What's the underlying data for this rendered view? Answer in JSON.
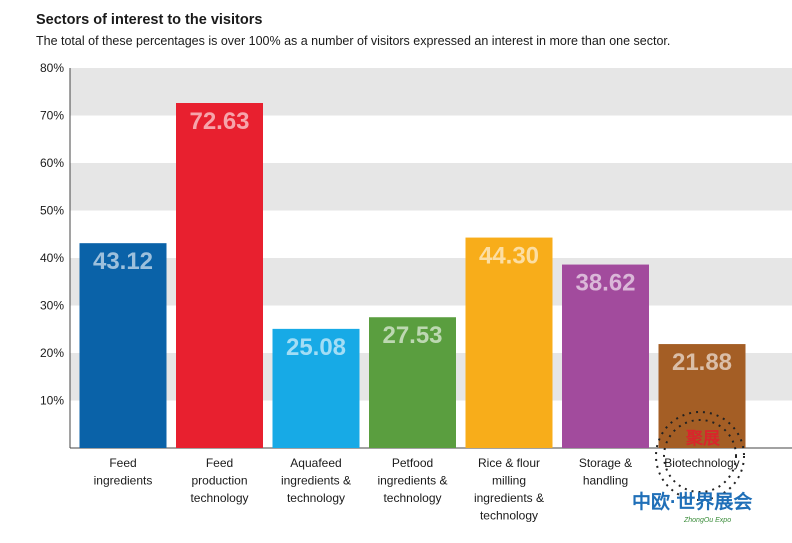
{
  "header": {
    "title": "Sectors of interest to the visitors",
    "subtitle": "The total of these percentages is over 100% as a number of visitors expressed an interest in more than one sector."
  },
  "watermark": {
    "text_top": "聚展",
    "text_main": "中欧·世界展会",
    "text_sub": "ZhongOu Expo"
  },
  "chart_data": {
    "type": "bar",
    "title": "Sectors of interest to the visitors",
    "subtitle": "The total of these percentages is over 100% as a number of visitors expressed an interest in more than one sector.",
    "categories": [
      [
        "Feed",
        "ingredients"
      ],
      [
        "Feed",
        "production",
        "technology"
      ],
      [
        "Aquafeed",
        "ingredients &",
        "technology"
      ],
      [
        "Petfood",
        "ingredients &",
        "technology"
      ],
      [
        "Rice & flour",
        "milling",
        "ingredients &",
        "technology"
      ],
      [
        "Storage &",
        "handling"
      ],
      [
        "Biotechnology"
      ]
    ],
    "values": [
      43.12,
      72.63,
      25.08,
      27.53,
      44.3,
      38.62,
      21.88
    ],
    "value_labels": [
      "43.12",
      "72.63",
      "25.08",
      "27.53",
      "44.30",
      "38.62",
      "21.88"
    ],
    "colors": [
      "#0a62a8",
      "#e8202f",
      "#17aae6",
      "#5a9e3f",
      "#f8ad1a",
      "#a24b9d",
      "#a45e25"
    ],
    "ylim": [
      0,
      80
    ],
    "yticks": [
      10,
      20,
      30,
      40,
      50,
      60,
      70,
      80
    ],
    "ytick_labels": [
      "10%",
      "20%",
      "30%",
      "40%",
      "50%",
      "60%",
      "70%",
      "80%"
    ],
    "grid": "alternating horizontal bands",
    "band_color": "#e6e6e6",
    "xlabel": "",
    "ylabel": ""
  }
}
